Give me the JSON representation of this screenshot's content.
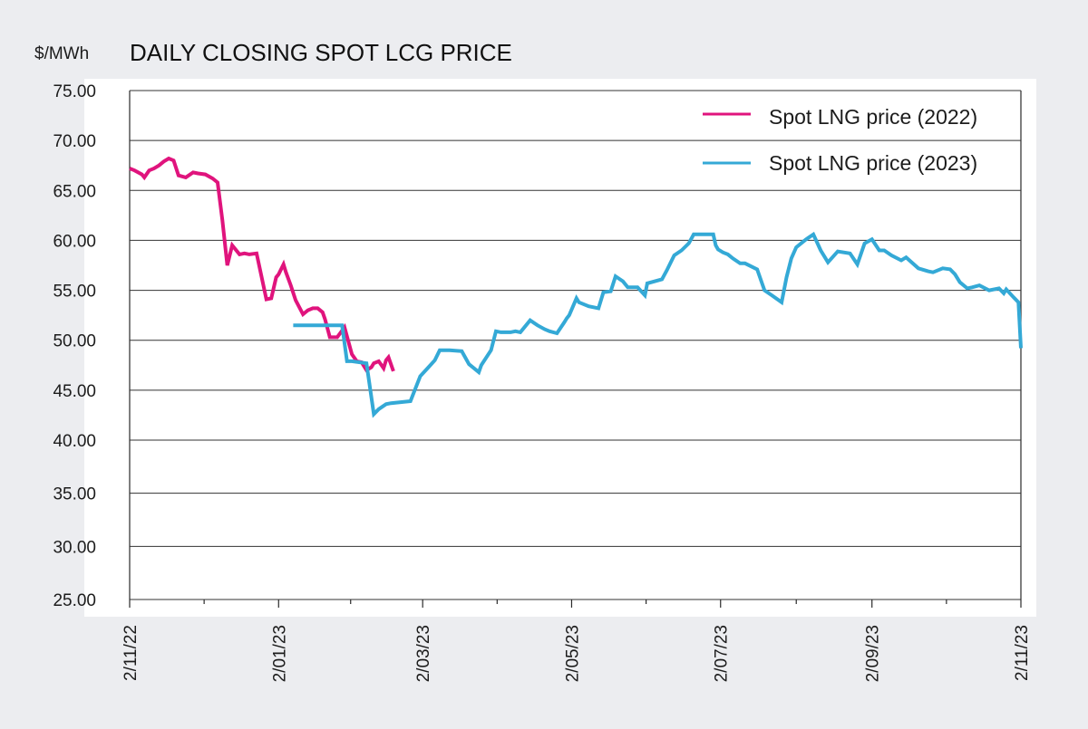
{
  "chart_data": {
    "type": "line",
    "title": "DAILY CLOSING SPOT LCG PRICE",
    "ylabel": "$/MWh",
    "xlabel": "",
    "ylim": [
      25,
      75
    ],
    "y_ticks": [
      "75.00",
      "70.00",
      "65.00",
      "60.00",
      "55.00",
      "50.00",
      "45.00",
      "40.00",
      "35.00",
      "30.00",
      "25.00"
    ],
    "x_ticks": [
      "2/11/22",
      "2/01/23",
      "2/03/23",
      "2/05/23",
      "2/07/23",
      "2/09/23",
      "2/11/23"
    ],
    "x_tick_dates": [
      "2022-11-02",
      "2023-01-02",
      "2023-03-02",
      "2023-05-02",
      "2023-07-02",
      "2023-09-02",
      "2023-11-02"
    ],
    "grid": "horizontal",
    "legend_position": "top-right",
    "series": [
      {
        "name": "Spot LNG price (2022)",
        "color": "#e0147d",
        "x": [
          "2022-11-02",
          "2022-11-04",
          "2022-11-07",
          "2022-11-08",
          "2022-11-10",
          "2022-11-12",
          "2022-11-14",
          "2022-11-16",
          "2022-11-18",
          "2022-11-20",
          "2022-11-22",
          "2022-11-25",
          "2022-11-28",
          "2022-11-30",
          "2022-12-03",
          "2022-12-06",
          "2022-12-08",
          "2022-12-10",
          "2022-12-12",
          "2022-12-14",
          "2022-12-17",
          "2022-12-19",
          "2022-12-21",
          "2022-12-24",
          "2022-12-28",
          "2022-12-30",
          "2023-01-01",
          "2023-01-02",
          "2023-01-04",
          "2023-01-05",
          "2023-01-07",
          "2023-01-09",
          "2023-01-12",
          "2023-01-14",
          "2023-01-16",
          "2023-01-18",
          "2023-01-20",
          "2023-01-21",
          "2023-01-23",
          "2023-01-26",
          "2023-01-29",
          "2023-02-01",
          "2023-02-03",
          "2023-02-05",
          "2023-02-07",
          "2023-02-09",
          "2023-02-10",
          "2023-02-12",
          "2023-02-14",
          "2023-02-15",
          "2023-02-16",
          "2023-02-18"
        ],
        "values": [
          67.2,
          67.0,
          66.6,
          66.3,
          67.0,
          67.2,
          67.5,
          67.9,
          68.2,
          68.0,
          66.5,
          66.3,
          66.8,
          66.7,
          66.6,
          66.2,
          65.8,
          62.0,
          57.5,
          59.5,
          58.6,
          58.7,
          58.6,
          58.7,
          54.1,
          54.2,
          56.3,
          56.6,
          57.6,
          56.8,
          55.5,
          54.0,
          52.6,
          53.0,
          53.2,
          53.2,
          52.8,
          52.1,
          50.3,
          50.3,
          51.3,
          48.6,
          47.9,
          47.8,
          47.0,
          47.3,
          47.7,
          47.9,
          47.2,
          48.0,
          48.3,
          46.9
        ]
      },
      {
        "name": "Spot LNG price (2023)",
        "color": "#34a9d6",
        "x": [
          "2023-01-08",
          "2023-01-14",
          "2023-01-22",
          "2023-01-28",
          "2023-01-30",
          "2023-02-01",
          "2023-02-07",
          "2023-02-10",
          "2023-02-12",
          "2023-02-15",
          "2023-02-17",
          "2023-02-21",
          "2023-02-25",
          "2023-03-01",
          "2023-03-04",
          "2023-03-07",
          "2023-03-09",
          "2023-03-13",
          "2023-03-18",
          "2023-03-21",
          "2023-03-23",
          "2023-03-25",
          "2023-03-26",
          "2023-03-30",
          "2023-04-01",
          "2023-04-03",
          "2023-04-07",
          "2023-04-09",
          "2023-04-11",
          "2023-04-15",
          "2023-04-18",
          "2023-04-21",
          "2023-04-23",
          "2023-04-26",
          "2023-04-29",
          "2023-04-30",
          "2023-05-01",
          "2023-05-04",
          "2023-05-05",
          "2023-05-09",
          "2023-05-13",
          "2023-05-15",
          "2023-05-18",
          "2023-05-20",
          "2023-05-23",
          "2023-05-25",
          "2023-05-29",
          "2023-06-01",
          "2023-06-02",
          "2023-06-08",
          "2023-06-10",
          "2023-06-13",
          "2023-06-16",
          "2023-06-19",
          "2023-06-21",
          "2023-06-23",
          "2023-06-29",
          "2023-06-30",
          "2023-07-01",
          "2023-07-03",
          "2023-07-05",
          "2023-07-07",
          "2023-07-10",
          "2023-07-12",
          "2023-07-17",
          "2023-07-20",
          "2023-07-23",
          "2023-07-27",
          "2023-07-29",
          "2023-07-31",
          "2023-08-02",
          "2023-08-04",
          "2023-08-06",
          "2023-08-09",
          "2023-08-12",
          "2023-08-15",
          "2023-08-19",
          "2023-08-24",
          "2023-08-27",
          "2023-08-30",
          "2023-09-02",
          "2023-09-05",
          "2023-09-07",
          "2023-09-10",
          "2023-09-14",
          "2023-09-16",
          "2023-09-21",
          "2023-09-25",
          "2023-09-27",
          "2023-10-01",
          "2023-10-04",
          "2023-10-06",
          "2023-10-08",
          "2023-10-11",
          "2023-10-13",
          "2023-10-16",
          "2023-10-20",
          "2023-10-24",
          "2023-10-26",
          "2023-10-27",
          "2023-10-30",
          "2023-11-01",
          "2023-11-02"
        ],
        "values": [
          51.5,
          51.5,
          51.5,
          51.5,
          47.9,
          47.9,
          47.7,
          42.6,
          43.1,
          43.6,
          43.7,
          43.8,
          43.9,
          46.4,
          47.2,
          48.0,
          49.0,
          49.0,
          48.9,
          47.6,
          47.2,
          46.8,
          47.5,
          49.0,
          50.9,
          50.8,
          50.8,
          50.9,
          50.8,
          52.0,
          51.5,
          51.1,
          50.9,
          50.7,
          51.8,
          52.2,
          52.5,
          54.2,
          53.8,
          53.4,
          53.2,
          54.8,
          54.9,
          56.4,
          55.9,
          55.3,
          55.3,
          54.5,
          55.7,
          56.1,
          57.0,
          58.5,
          59.0,
          59.7,
          60.6,
          60.6,
          60.6,
          59.5,
          59.1,
          58.8,
          58.6,
          58.2,
          57.7,
          57.7,
          57.1,
          55.0,
          54.5,
          53.8,
          56.3,
          58.2,
          59.3,
          59.7,
          60.1,
          60.6,
          59.0,
          57.8,
          58.9,
          58.7,
          57.6,
          59.7,
          60.1,
          59.0,
          59.0,
          58.5,
          58.0,
          58.3,
          57.2,
          56.9,
          56.8,
          57.2,
          57.1,
          56.6,
          55.8,
          55.2,
          55.3,
          55.5,
          55.0,
          55.2,
          54.7,
          55.1,
          54.3,
          53.8,
          49.2
        ]
      }
    ]
  }
}
